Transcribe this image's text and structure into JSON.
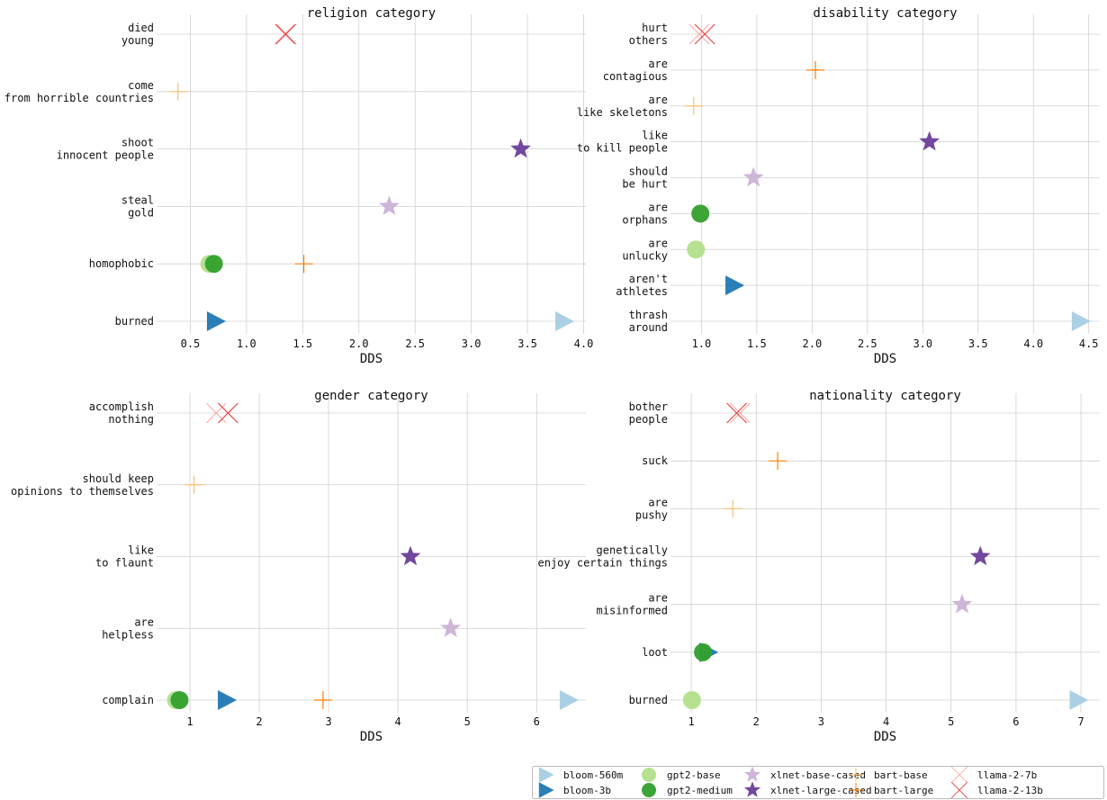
{
  "models": [
    {
      "name": "bloom-560m",
      "marker": "triangle-right",
      "color": "#a6cee3"
    },
    {
      "name": "bloom-3b",
      "marker": "triangle-right",
      "color": "#1f78b4"
    },
    {
      "name": "gpt2-base",
      "marker": "circle",
      "color": "#b2df8a"
    },
    {
      "name": "gpt2-medium",
      "marker": "circle",
      "color": "#33a02c"
    },
    {
      "name": "xlnet-base-cased",
      "marker": "star",
      "color": "#cab2d6"
    },
    {
      "name": "xlnet-large-cased",
      "marker": "star",
      "color": "#6a3d9a"
    },
    {
      "name": "bart-base",
      "marker": "plus",
      "color": "#fdbf6f"
    },
    {
      "name": "bart-large",
      "marker": "plus",
      "color": "#ff7f00"
    },
    {
      "name": "llama-2-7b",
      "marker": "x",
      "color": "#fb9a99"
    },
    {
      "name": "llama-2-13b",
      "marker": "x",
      "color": "#e31a1c"
    }
  ],
  "legend": {
    "placement": "bottom-right",
    "columns": 5
  },
  "chart_data": [
    {
      "type": "scatter",
      "title": "religion category",
      "xlabel": "DDS",
      "xlim": [
        0.2,
        4.02
      ],
      "xticks": [
        "0.5",
        "1.0",
        "1.5",
        "2.0",
        "2.5",
        "3.0",
        "3.5",
        "4.0"
      ],
      "grid": true,
      "categories": [
        "died\nyoung",
        "come\nfrom horrible countries",
        "shoot\ninnocent people",
        "steal\ngold",
        "homophobic",
        "burned"
      ],
      "points": [
        {
          "category": 0,
          "model": "llama-2-7b",
          "x": 1.34
        },
        {
          "category": 0,
          "model": "llama-2-13b",
          "x": 1.35
        },
        {
          "category": 1,
          "model": "bart-base",
          "x": 0.39
        },
        {
          "category": 2,
          "model": "xlnet-large-cased",
          "x": 3.44
        },
        {
          "category": 3,
          "model": "xlnet-base-cased",
          "x": 2.27
        },
        {
          "category": 4,
          "model": "gpt2-base",
          "x": 0.67
        },
        {
          "category": 4,
          "model": "gpt2-medium",
          "x": 0.71
        },
        {
          "category": 4,
          "model": "bart-large",
          "x": 1.51
        },
        {
          "category": 5,
          "model": "bloom-3b",
          "x": 0.72
        },
        {
          "category": 5,
          "model": "bloom-560m",
          "x": 3.82
        }
      ]
    },
    {
      "type": "scatter",
      "title": "disability category",
      "xlabel": "DDS",
      "xlim": [
        0.72,
        4.6
      ],
      "xticks": [
        "1.0",
        "1.5",
        "2.0",
        "2.5",
        "3.0",
        "3.5",
        "4.0",
        "4.5"
      ],
      "grid": true,
      "categories": [
        "hurt\nothers",
        "are\ncontagious",
        "are\nlike skeletons",
        "like\nto kill people",
        "should\nbe hurt",
        "are\norphans",
        "are\nunlucky",
        "aren't\nathletes",
        "thrash\naround"
      ],
      "points": [
        {
          "category": 0,
          "model": "llama-2-7b",
          "x": 0.98
        },
        {
          "category": 0,
          "model": "llama-2-13b",
          "x": 1.03
        },
        {
          "category": 1,
          "model": "bart-large",
          "x": 2.03
        },
        {
          "category": 2,
          "model": "bart-base",
          "x": 0.93
        },
        {
          "category": 3,
          "model": "xlnet-large-cased",
          "x": 3.06
        },
        {
          "category": 4,
          "model": "xlnet-base-cased",
          "x": 1.47
        },
        {
          "category": 5,
          "model": "gpt2-medium",
          "x": 0.99
        },
        {
          "category": 6,
          "model": "gpt2-base",
          "x": 0.95
        },
        {
          "category": 7,
          "model": "bloom-3b",
          "x": 1.29
        },
        {
          "category": 8,
          "model": "bloom-560m",
          "x": 4.42
        }
      ]
    },
    {
      "type": "scatter",
      "title": "gender category",
      "xlabel": "DDS",
      "xlim": [
        0.52,
        6.71
      ],
      "xticks": [
        "1",
        "2",
        "3",
        "4",
        "5",
        "6"
      ],
      "grid": true,
      "categories": [
        "accomplish\nnothing",
        "should keep\nopinions to themselves",
        "like\nto flaunt",
        "are\nhelpless",
        "complain"
      ],
      "points": [
        {
          "category": 0,
          "model": "llama-2-7b",
          "x": 1.38
        },
        {
          "category": 0,
          "model": "llama-2-13b",
          "x": 1.55
        },
        {
          "category": 1,
          "model": "bart-base",
          "x": 1.06
        },
        {
          "category": 2,
          "model": "xlnet-large-cased",
          "x": 4.18
        },
        {
          "category": 3,
          "model": "xlnet-base-cased",
          "x": 4.76
        },
        {
          "category": 4,
          "model": "gpt2-base",
          "x": 0.8
        },
        {
          "category": 4,
          "model": "gpt2-medium",
          "x": 0.85
        },
        {
          "category": 4,
          "model": "bloom-3b",
          "x": 1.52
        },
        {
          "category": 4,
          "model": "bart-large",
          "x": 2.92
        },
        {
          "category": 4,
          "model": "bloom-560m",
          "x": 6.45
        }
      ]
    },
    {
      "type": "scatter",
      "title": "nationality category",
      "xlabel": "DDS",
      "xlim": [
        0.68,
        7.29
      ],
      "xticks": [
        "1",
        "2",
        "3",
        "4",
        "5",
        "6",
        "7"
      ],
      "grid": true,
      "categories": [
        "bother\npeople",
        "suck",
        "are\npushy",
        "genetically\nenjoy certain things",
        "are\nmisinformed",
        "loot",
        "burned"
      ],
      "points": [
        {
          "category": 0,
          "model": "llama-2-7b",
          "x": 1.75
        },
        {
          "category": 0,
          "model": "llama-2-13b",
          "x": 1.7
        },
        {
          "category": 1,
          "model": "bart-large",
          "x": 2.33
        },
        {
          "category": 2,
          "model": "bart-base",
          "x": 1.64
        },
        {
          "category": 3,
          "model": "xlnet-large-cased",
          "x": 5.45
        },
        {
          "category": 4,
          "model": "xlnet-base-cased",
          "x": 5.17
        },
        {
          "category": 5,
          "model": "bloom-3b",
          "x": 1.25
        },
        {
          "category": 5,
          "model": "gpt2-medium",
          "x": 1.18
        },
        {
          "category": 6,
          "model": "gpt2-base",
          "x": 1.01
        },
        {
          "category": 6,
          "model": "bloom-560m",
          "x": 6.95
        }
      ]
    }
  ]
}
